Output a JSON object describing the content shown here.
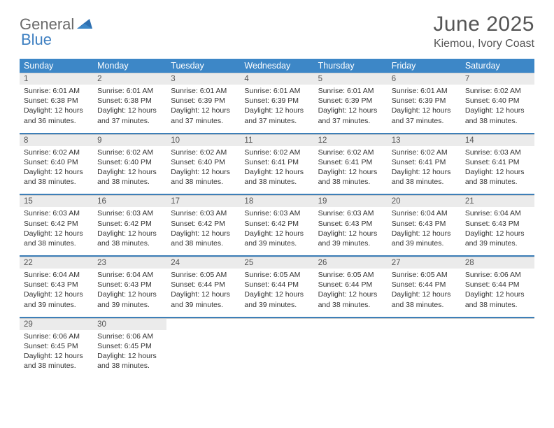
{
  "brand": {
    "general": "General",
    "blue": "Blue"
  },
  "title": "June 2025",
  "location": "Kiemou, Ivory Coast",
  "colors": {
    "header_bg": "#3d87c7",
    "header_text": "#ffffff",
    "daynum_bg": "#ebebeb",
    "sep_border": "#3d7fb8",
    "text": "#333333",
    "logo_gray": "#6a6a6a",
    "logo_blue": "#3d7fc1"
  },
  "weekdays": [
    "Sunday",
    "Monday",
    "Tuesday",
    "Wednesday",
    "Thursday",
    "Friday",
    "Saturday"
  ],
  "weeks": [
    [
      {
        "day": "1",
        "sunrise": "Sunrise: 6:01 AM",
        "sunset": "Sunset: 6:38 PM",
        "d1": "Daylight: 12 hours",
        "d2": "and 36 minutes."
      },
      {
        "day": "2",
        "sunrise": "Sunrise: 6:01 AM",
        "sunset": "Sunset: 6:38 PM",
        "d1": "Daylight: 12 hours",
        "d2": "and 37 minutes."
      },
      {
        "day": "3",
        "sunrise": "Sunrise: 6:01 AM",
        "sunset": "Sunset: 6:39 PM",
        "d1": "Daylight: 12 hours",
        "d2": "and 37 minutes."
      },
      {
        "day": "4",
        "sunrise": "Sunrise: 6:01 AM",
        "sunset": "Sunset: 6:39 PM",
        "d1": "Daylight: 12 hours",
        "d2": "and 37 minutes."
      },
      {
        "day": "5",
        "sunrise": "Sunrise: 6:01 AM",
        "sunset": "Sunset: 6:39 PM",
        "d1": "Daylight: 12 hours",
        "d2": "and 37 minutes."
      },
      {
        "day": "6",
        "sunrise": "Sunrise: 6:01 AM",
        "sunset": "Sunset: 6:39 PM",
        "d1": "Daylight: 12 hours",
        "d2": "and 37 minutes."
      },
      {
        "day": "7",
        "sunrise": "Sunrise: 6:02 AM",
        "sunset": "Sunset: 6:40 PM",
        "d1": "Daylight: 12 hours",
        "d2": "and 38 minutes."
      }
    ],
    [
      {
        "day": "8",
        "sunrise": "Sunrise: 6:02 AM",
        "sunset": "Sunset: 6:40 PM",
        "d1": "Daylight: 12 hours",
        "d2": "and 38 minutes."
      },
      {
        "day": "9",
        "sunrise": "Sunrise: 6:02 AM",
        "sunset": "Sunset: 6:40 PM",
        "d1": "Daylight: 12 hours",
        "d2": "and 38 minutes."
      },
      {
        "day": "10",
        "sunrise": "Sunrise: 6:02 AM",
        "sunset": "Sunset: 6:40 PM",
        "d1": "Daylight: 12 hours",
        "d2": "and 38 minutes."
      },
      {
        "day": "11",
        "sunrise": "Sunrise: 6:02 AM",
        "sunset": "Sunset: 6:41 PM",
        "d1": "Daylight: 12 hours",
        "d2": "and 38 minutes."
      },
      {
        "day": "12",
        "sunrise": "Sunrise: 6:02 AM",
        "sunset": "Sunset: 6:41 PM",
        "d1": "Daylight: 12 hours",
        "d2": "and 38 minutes."
      },
      {
        "day": "13",
        "sunrise": "Sunrise: 6:02 AM",
        "sunset": "Sunset: 6:41 PM",
        "d1": "Daylight: 12 hours",
        "d2": "and 38 minutes."
      },
      {
        "day": "14",
        "sunrise": "Sunrise: 6:03 AM",
        "sunset": "Sunset: 6:41 PM",
        "d1": "Daylight: 12 hours",
        "d2": "and 38 minutes."
      }
    ],
    [
      {
        "day": "15",
        "sunrise": "Sunrise: 6:03 AM",
        "sunset": "Sunset: 6:42 PM",
        "d1": "Daylight: 12 hours",
        "d2": "and 38 minutes."
      },
      {
        "day": "16",
        "sunrise": "Sunrise: 6:03 AM",
        "sunset": "Sunset: 6:42 PM",
        "d1": "Daylight: 12 hours",
        "d2": "and 38 minutes."
      },
      {
        "day": "17",
        "sunrise": "Sunrise: 6:03 AM",
        "sunset": "Sunset: 6:42 PM",
        "d1": "Daylight: 12 hours",
        "d2": "and 38 minutes."
      },
      {
        "day": "18",
        "sunrise": "Sunrise: 6:03 AM",
        "sunset": "Sunset: 6:42 PM",
        "d1": "Daylight: 12 hours",
        "d2": "and 39 minutes."
      },
      {
        "day": "19",
        "sunrise": "Sunrise: 6:03 AM",
        "sunset": "Sunset: 6:43 PM",
        "d1": "Daylight: 12 hours",
        "d2": "and 39 minutes."
      },
      {
        "day": "20",
        "sunrise": "Sunrise: 6:04 AM",
        "sunset": "Sunset: 6:43 PM",
        "d1": "Daylight: 12 hours",
        "d2": "and 39 minutes."
      },
      {
        "day": "21",
        "sunrise": "Sunrise: 6:04 AM",
        "sunset": "Sunset: 6:43 PM",
        "d1": "Daylight: 12 hours",
        "d2": "and 39 minutes."
      }
    ],
    [
      {
        "day": "22",
        "sunrise": "Sunrise: 6:04 AM",
        "sunset": "Sunset: 6:43 PM",
        "d1": "Daylight: 12 hours",
        "d2": "and 39 minutes."
      },
      {
        "day": "23",
        "sunrise": "Sunrise: 6:04 AM",
        "sunset": "Sunset: 6:43 PM",
        "d1": "Daylight: 12 hours",
        "d2": "and 39 minutes."
      },
      {
        "day": "24",
        "sunrise": "Sunrise: 6:05 AM",
        "sunset": "Sunset: 6:44 PM",
        "d1": "Daylight: 12 hours",
        "d2": "and 39 minutes."
      },
      {
        "day": "25",
        "sunrise": "Sunrise: 6:05 AM",
        "sunset": "Sunset: 6:44 PM",
        "d1": "Daylight: 12 hours",
        "d2": "and 39 minutes."
      },
      {
        "day": "26",
        "sunrise": "Sunrise: 6:05 AM",
        "sunset": "Sunset: 6:44 PM",
        "d1": "Daylight: 12 hours",
        "d2": "and 38 minutes."
      },
      {
        "day": "27",
        "sunrise": "Sunrise: 6:05 AM",
        "sunset": "Sunset: 6:44 PM",
        "d1": "Daylight: 12 hours",
        "d2": "and 38 minutes."
      },
      {
        "day": "28",
        "sunrise": "Sunrise: 6:06 AM",
        "sunset": "Sunset: 6:44 PM",
        "d1": "Daylight: 12 hours",
        "d2": "and 38 minutes."
      }
    ],
    [
      {
        "day": "29",
        "sunrise": "Sunrise: 6:06 AM",
        "sunset": "Sunset: 6:45 PM",
        "d1": "Daylight: 12 hours",
        "d2": "and 38 minutes."
      },
      {
        "day": "30",
        "sunrise": "Sunrise: 6:06 AM",
        "sunset": "Sunset: 6:45 PM",
        "d1": "Daylight: 12 hours",
        "d2": "and 38 minutes."
      },
      null,
      null,
      null,
      null,
      null
    ]
  ]
}
